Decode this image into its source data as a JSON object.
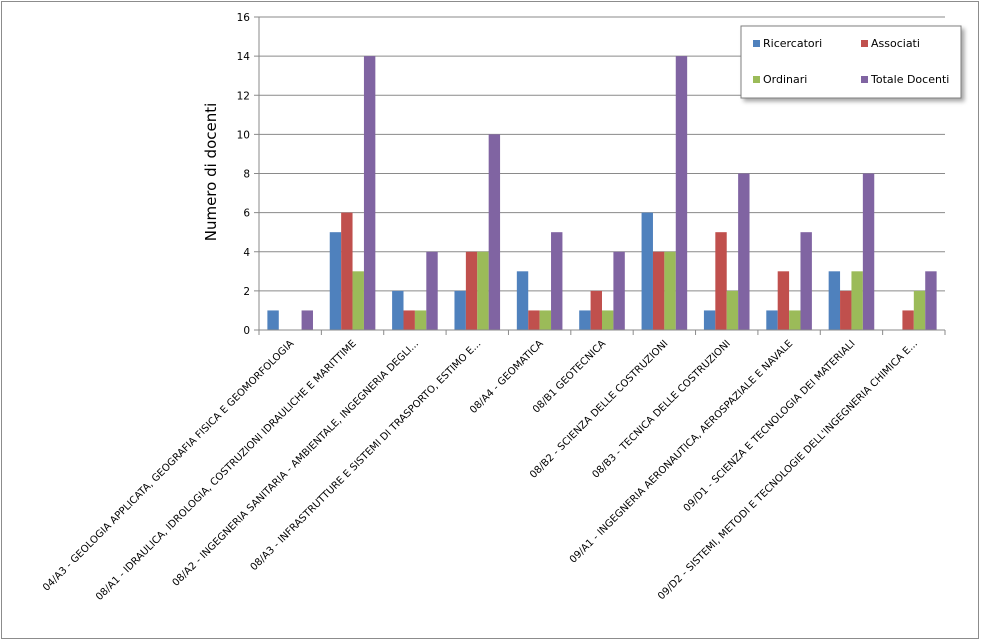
{
  "chart_data": {
    "type": "bar",
    "title": "",
    "xlabel": "",
    "ylabel": "Numero di docenti",
    "ylim": [
      0,
      16
    ],
    "yticks": [
      0,
      2,
      4,
      6,
      8,
      10,
      12,
      14,
      16
    ],
    "grid": true,
    "legend_position": "top-right",
    "categories": [
      "04/A3 - GEOLOGIA APPLICATA, GEOGRAFIA FISICA E GEOMORFOLOGIA",
      "08/A1 - IDRAULICA, IDROLOGIA, COSTRUZIONI IDRAULICHE E MARITTIME",
      "08/A2 - INGEGNERIA SANITARIA - AMBIENTALE, INGEGNERIA DEGLI...",
      "08/A3 - INFRASTRUTTURE E SISTEMI DI TRASPORTO, ESTIMO E...",
      "08/A4 - GEOMATICA",
      "08/B1 GEOTECNICA",
      "08/B2 - SCIENZA DELLE COSTRUZIONI",
      "08/B3 - TECNICA DELLE COSTRUZIONI",
      "09/A1 - INGEGNERIA AERONAUTICA, AEROSPAZIALE E NAVALE",
      "09/D1 - SCIENZA E TECNOLOGIA DEI MATERIALI",
      "09/D2 - SISTEMI, METODI E TECNOLOGIE DELL'INGEGNERIA CHIMICA E..."
    ],
    "series": [
      {
        "name": "Ricercatori",
        "color": "#4f81bd",
        "values": [
          1,
          5,
          2,
          2,
          3,
          1,
          6,
          1,
          1,
          3,
          0
        ]
      },
      {
        "name": "Associati",
        "color": "#c0504d",
        "values": [
          0,
          6,
          1,
          4,
          1,
          2,
          4,
          5,
          3,
          2,
          1
        ]
      },
      {
        "name": "Ordinari",
        "color": "#9bbb59",
        "values": [
          0,
          3,
          1,
          4,
          1,
          1,
          4,
          2,
          1,
          3,
          2
        ]
      },
      {
        "name": "Totale Docenti",
        "color": "#8064a2",
        "values": [
          1,
          14,
          4,
          10,
          5,
          4,
          14,
          8,
          5,
          8,
          3
        ]
      }
    ]
  }
}
